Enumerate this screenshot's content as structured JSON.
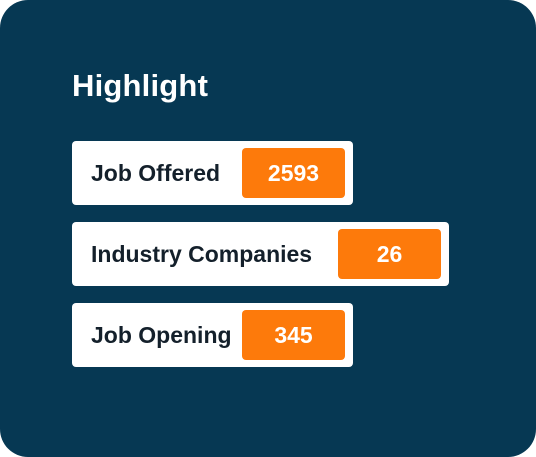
{
  "highlight": {
    "title": "Highlight",
    "items": [
      {
        "label": "Job Offered",
        "value": "2593"
      },
      {
        "label": "Industry Companies",
        "value": "26"
      },
      {
        "label": "Job Opening",
        "value": "345"
      }
    ]
  },
  "colors": {
    "card_background": "#063853",
    "value_badge": "#fd7a0b",
    "label_text": "#14202b",
    "title_text": "#ffffff"
  }
}
